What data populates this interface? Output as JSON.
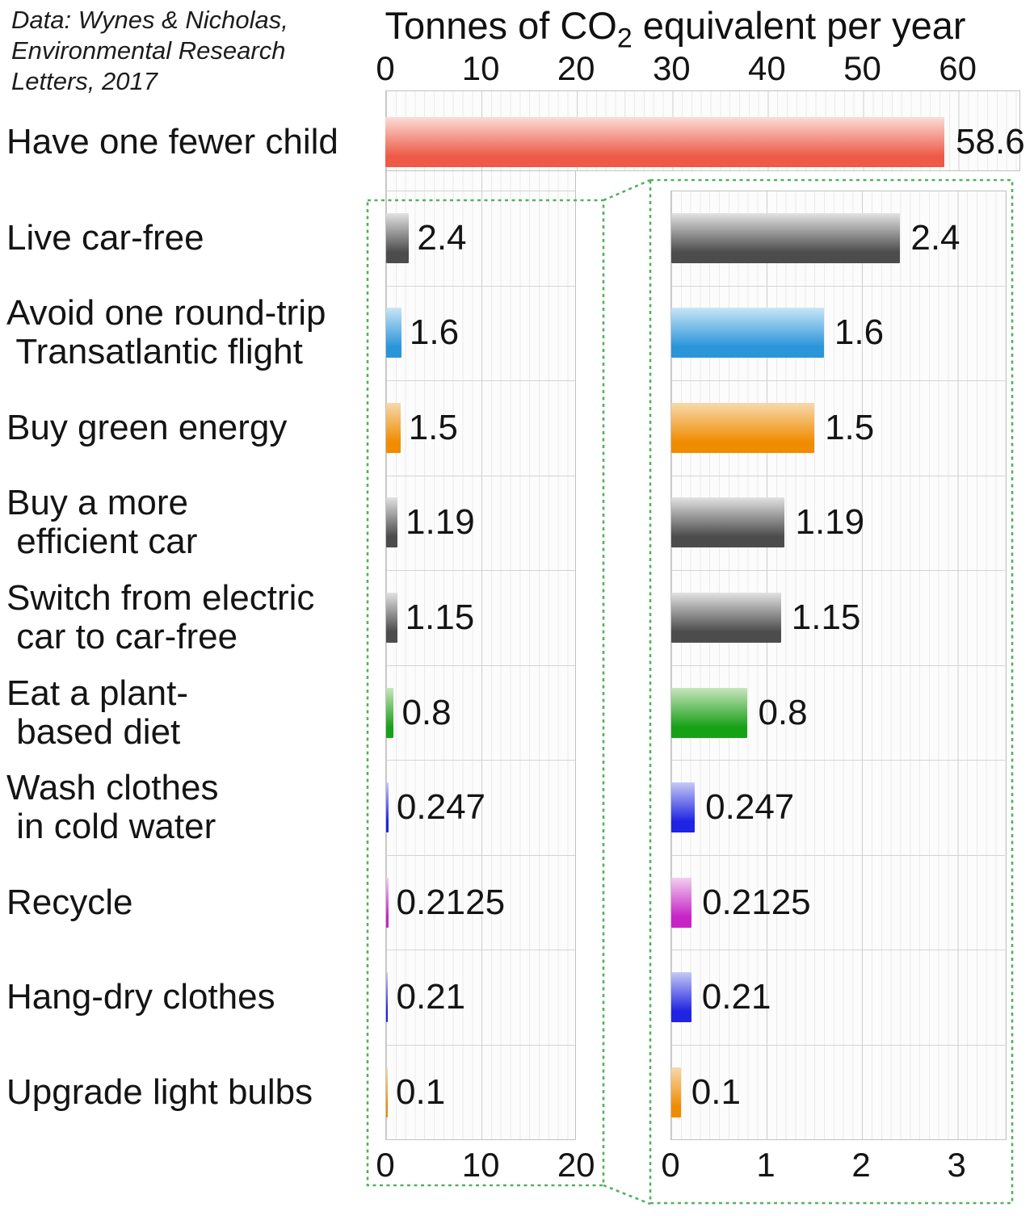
{
  "credit": {
    "lines": [
      "Data: Wynes & Nicholas,",
      "Environmental Research",
      "Letters, 2017"
    ]
  },
  "title": {
    "pre": "Tonnes of CO",
    "sub": "2",
    "post": " equivalent per year"
  },
  "chart_data": {
    "type": "bar",
    "orientation": "horizontal",
    "title": "Tonnes of CO2 equivalent per year",
    "source_note": "Data: Wynes & Nicholas, Environmental Research Letters, 2017",
    "categories": [
      "Have one fewer child",
      "Live car-free",
      "Avoid one round-trip Transatlantic flight",
      "Buy green energy",
      "Buy a more efficient car",
      "Switch from electric car to car-free",
      "Eat a plant-based diet",
      "Wash clothes in cold water",
      "Recycle",
      "Hang-dry clothes",
      "Upgrade light bulbs"
    ],
    "category_lines": [
      [
        "Have one fewer child"
      ],
      [
        "Live car-free"
      ],
      [
        "Avoid one round-trip",
        " Transatlantic flight"
      ],
      [
        "Buy green energy"
      ],
      [
        "Buy a more",
        " efficient car"
      ],
      [
        "Switch from electric",
        " car to car-free"
      ],
      [
        "Eat a plant-",
        " based diet"
      ],
      [
        "Wash clothes",
        " in cold water"
      ],
      [
        "Recycle"
      ],
      [
        "Hang-dry clothes"
      ],
      [
        "Upgrade light bulbs"
      ]
    ],
    "values": [
      58.6,
      2.4,
      1.6,
      1.5,
      1.19,
      1.15,
      0.8,
      0.247,
      0.2125,
      0.21,
      0.1
    ],
    "value_labels": [
      "58.6",
      "2.4",
      "1.6",
      "1.5",
      "1.19",
      "1.15",
      "0.8",
      "0.247",
      "0.2125",
      "0.21",
      "0.1"
    ],
    "bar_colors": [
      "red",
      "gray",
      "sky_blue",
      "orange",
      "gray",
      "gray",
      "green",
      "indigo",
      "magenta",
      "indigo",
      "orange"
    ],
    "color_gradients": {
      "red": [
        "#fbdcd6",
        "#ee5a47"
      ],
      "gray": [
        "#e2e2e2",
        "#4c4c4c"
      ],
      "sky_blue": [
        "#c9e6f7",
        "#2b95d9"
      ],
      "orange": [
        "#f7d9ad",
        "#f08c00"
      ],
      "green": [
        "#c8e5bc",
        "#17a117"
      ],
      "indigo": [
        "#c5caf5",
        "#2023e2"
      ],
      "magenta": [
        "#f2cff0",
        "#c724c7"
      ]
    },
    "axes": {
      "top": {
        "ticks": [
          0,
          10,
          20,
          30,
          40,
          50,
          60
        ],
        "range": [
          0,
          66.5
        ]
      },
      "zoom_left": {
        "ticks": [
          0,
          10,
          20
        ],
        "range": [
          0,
          20
        ]
      },
      "zoom_right": {
        "ticks": [
          0,
          1,
          2,
          3
        ],
        "range": [
          0,
          3.52
        ]
      }
    },
    "grid": true,
    "legend": false,
    "zoom_outline_color": "#53b25c"
  }
}
